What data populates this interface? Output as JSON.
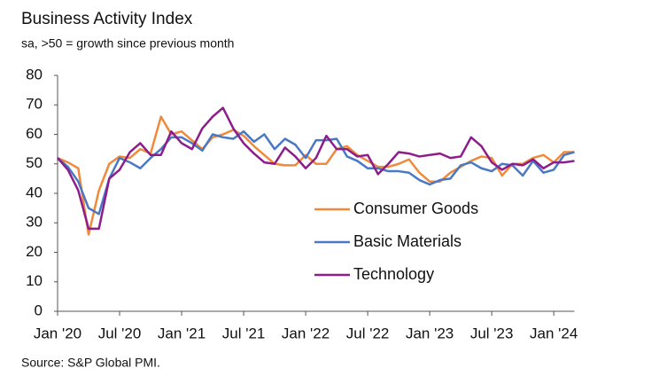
{
  "chart_data": {
    "type": "line",
    "title": "Business Activity Index",
    "subtitle": "sa, >50 = growth since previous month",
    "source": "Source: S&P Global PMI.",
    "categories": [
      "Jan '20",
      null,
      null,
      null,
      null,
      null,
      "Jul '20",
      null,
      null,
      null,
      null,
      null,
      "Jan '21",
      null,
      null,
      null,
      null,
      null,
      "Jul '21",
      null,
      null,
      null,
      null,
      null,
      "Jan '22",
      null,
      null,
      null,
      null,
      null,
      "Jul '22",
      null,
      null,
      null,
      null,
      null,
      "Jan '23",
      null,
      null,
      null,
      null,
      null,
      "Jul '23",
      null,
      null,
      null,
      null,
      null,
      "Jan '24",
      null,
      null
    ],
    "ylim": [
      0,
      80
    ],
    "yticks": [
      0,
      10,
      20,
      30,
      40,
      50,
      60,
      70,
      80
    ],
    "series": [
      {
        "name": "Consumer Goods",
        "color": "#ef8a3c",
        "values": [
          52,
          50.5,
          48.5,
          26,
          41,
          50,
          52.5,
          52,
          55,
          53.5,
          66,
          60,
          61,
          58,
          55,
          59,
          60,
          61.5,
          59.5,
          56,
          53,
          50,
          49.5,
          49.5,
          53,
          50,
          50,
          55,
          56,
          53,
          51,
          49,
          49,
          50,
          51.5,
          47,
          44,
          44,
          47,
          49,
          51,
          52.5,
          52,
          46,
          50,
          50,
          52,
          53,
          50.5,
          54,
          54
        ]
      },
      {
        "name": "Basic Materials",
        "color": "#4a78c2",
        "values": [
          52,
          49,
          44,
          35,
          33,
          45,
          52,
          50.5,
          48.5,
          52,
          55,
          59,
          59,
          57,
          54.5,
          60,
          59,
          58.5,
          61,
          57.5,
          60,
          55,
          58.5,
          56.5,
          52,
          58,
          58,
          58.5,
          52.5,
          51,
          48.5,
          48.5,
          47.5,
          47.5,
          47,
          44.5,
          43,
          44.5,
          45,
          49.5,
          50.5,
          48.5,
          47.5,
          50,
          49.5,
          46,
          51,
          47,
          48,
          53,
          54
        ]
      },
      {
        "name": "Technology",
        "color": "#8c1d8a",
        "values": [
          52,
          48,
          41,
          28,
          28,
          45,
          48,
          54,
          57,
          53,
          53,
          61,
          57,
          55,
          62,
          66,
          69,
          62,
          57,
          53.5,
          50.5,
          50,
          55.5,
          52.5,
          48.5,
          52,
          59.5,
          55,
          55,
          52.5,
          53,
          46.5,
          50,
          54,
          53.5,
          52.5,
          53,
          53.5,
          52,
          52.5,
          59,
          56,
          50.5,
          48,
          50,
          49.5,
          51.5,
          48.5,
          50.5,
          50.5,
          51
        ]
      }
    ]
  }
}
